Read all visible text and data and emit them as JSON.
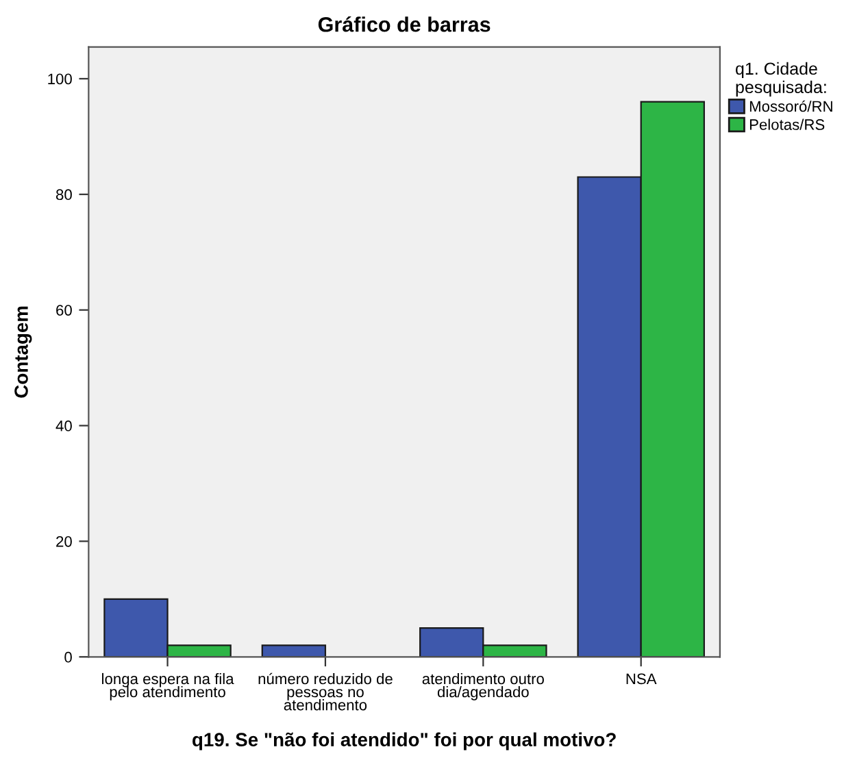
{
  "chart_data": {
    "type": "bar",
    "title": "Gráfico de barras",
    "xlabel": "q19. Se \"não foi atendido\" foi por qual motivo?",
    "ylabel": "Contagem",
    "legend_title": "q1. Cidade\npesquisada:",
    "categories": [
      "longa espera na fila\npelo atendimento",
      "número reduzido de\npessoas no\natendimento",
      "atendimento outro\ndia/agendado",
      "NSA"
    ],
    "series": [
      {
        "name": "Mossoró/RN",
        "color": "#3e58ac",
        "values": [
          10,
          2,
          5,
          83
        ]
      },
      {
        "name": "Pelotas/RS",
        "color": "#2db546",
        "values": [
          2,
          null,
          2,
          96
        ]
      }
    ],
    "ylim": [
      0,
      105.5
    ],
    "yticks": [
      0,
      20,
      40,
      60,
      80,
      100
    ],
    "grid": false,
    "legend": "top right"
  }
}
